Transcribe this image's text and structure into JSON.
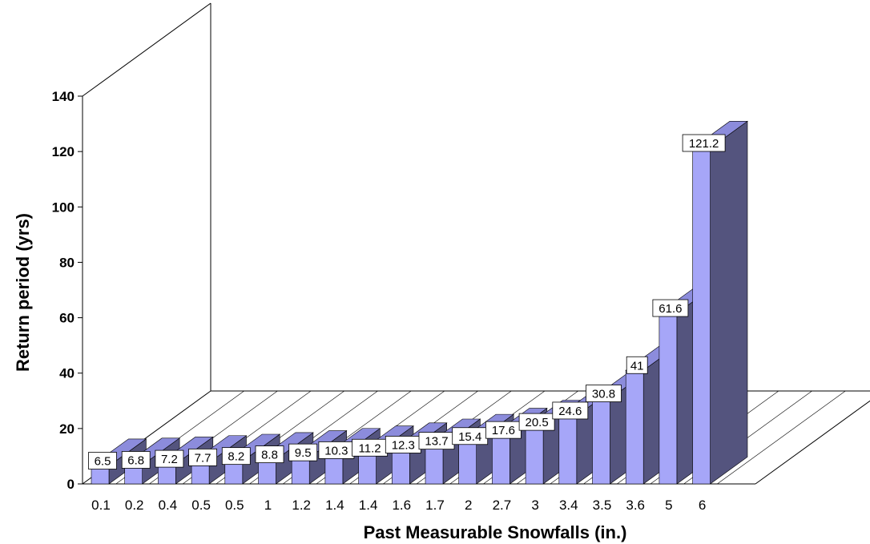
{
  "chart_data": {
    "type": "bar",
    "style": "3d-column",
    "xlabel": "Past Measurable Snowfalls (in.)",
    "ylabel": "Return period (yrs)",
    "ylim": [
      0,
      140
    ],
    "y_ticks": [
      "0",
      "20",
      "40",
      "60",
      "80",
      "100",
      "120",
      "140"
    ],
    "categories": [
      "0.1",
      "0.2",
      "0.4",
      "0.5",
      "0.5",
      "1",
      "1.2",
      "1.4",
      "1.4",
      "1.6",
      "1.7",
      "2",
      "2.7",
      "3",
      "3.4",
      "3.5",
      "3.6",
      "5",
      "6"
    ],
    "values": [
      6.5,
      6.8,
      7.2,
      7.7,
      8.2,
      8.8,
      9.5,
      10.3,
      11.2,
      12.3,
      13.7,
      15.4,
      17.6,
      20.5,
      24.6,
      30.8,
      41,
      61.6,
      121.2
    ],
    "data_labels": [
      "6.5",
      "6.8",
      "7.2",
      "7.7",
      "8.2",
      "8.8",
      "9.5",
      "10.3",
      "11.2",
      "12.3",
      "13.7",
      "15.4",
      "17.6",
      "20.5",
      "24.6",
      "30.8",
      "41",
      "61.6",
      "121.2"
    ],
    "colors": {
      "front": "#a6a6f8",
      "side": "#54547e",
      "top": "#8c8cdc",
      "label_bg": "#ffffff"
    },
    "grid": false,
    "legend": "none"
  }
}
